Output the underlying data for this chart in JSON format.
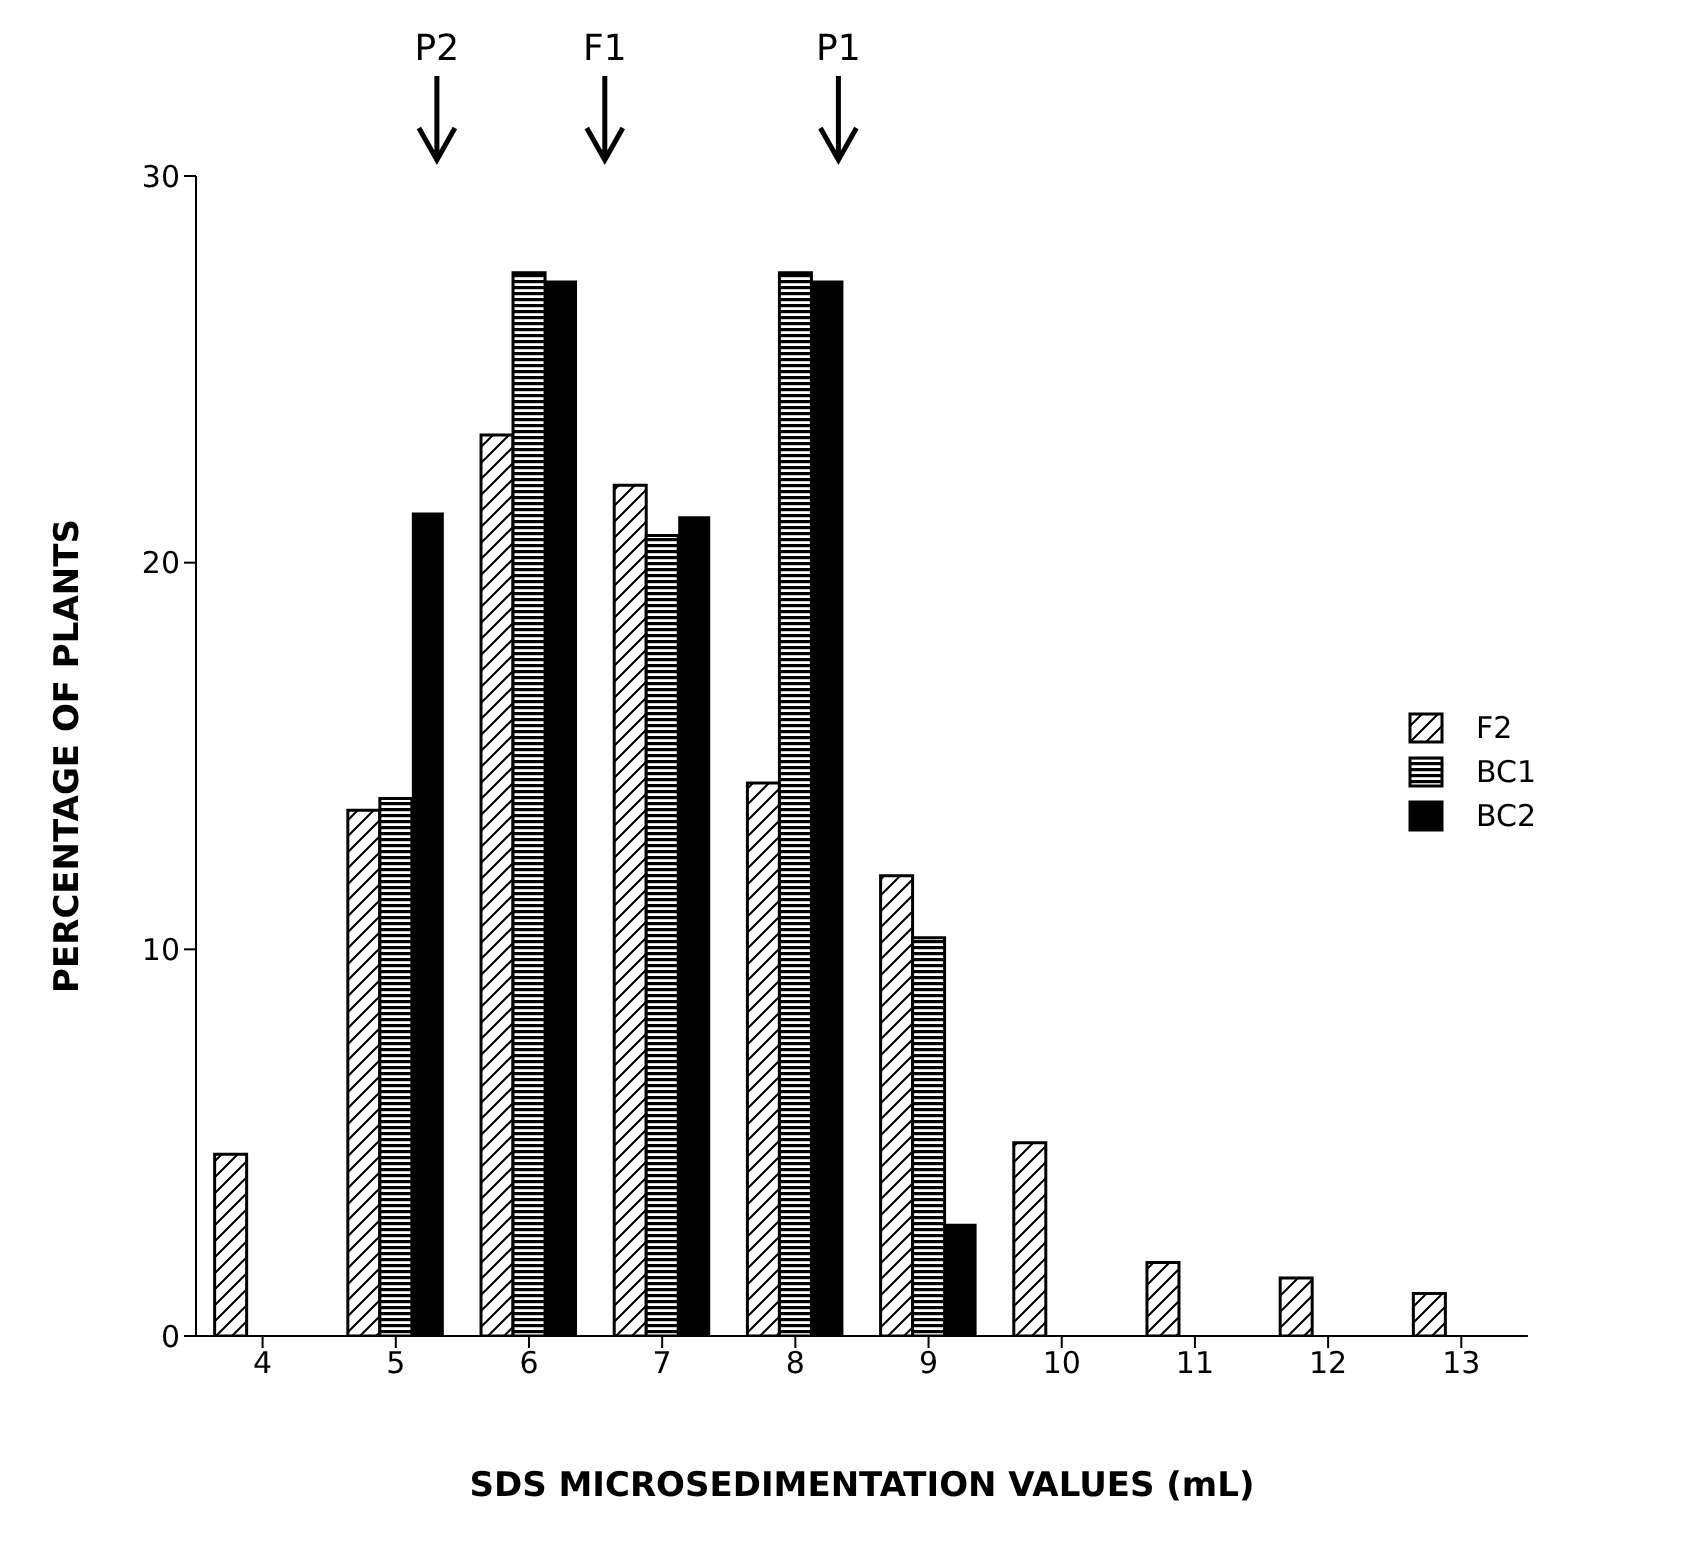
{
  "chart_data": {
    "type": "bar",
    "xlabel": "SDS MICROSEDIMENTATION VALUES (mL)",
    "ylabel": "PERCENTAGE OF PLANTS",
    "categories": [
      "4",
      "5",
      "6",
      "7",
      "8",
      "9",
      "10",
      "11",
      "12",
      "13"
    ],
    "series": [
      {
        "name": "F2",
        "color": "#000000",
        "values": [
          4.7,
          13.6,
          23.3,
          22.0,
          14.3,
          11.9,
          5.0,
          1.9,
          1.5,
          1.1
        ]
      },
      {
        "name": "BC1",
        "color": "#000000",
        "values": [
          0,
          13.9,
          27.5,
          20.7,
          27.5,
          10.3,
          0,
          0,
          0,
          0
        ]
      },
      {
        "name": "BC2",
        "color": "#000000",
        "values": [
          0,
          21.3,
          27.3,
          21.2,
          27.3,
          2.9,
          0,
          0,
          0,
          0
        ]
      }
    ],
    "ylim": [
      0,
      30
    ],
    "yticks": [
      0,
      10,
      20,
      30
    ],
    "legend": "right",
    "annotations": [
      "P2",
      "F1",
      "P1"
    ]
  }
}
